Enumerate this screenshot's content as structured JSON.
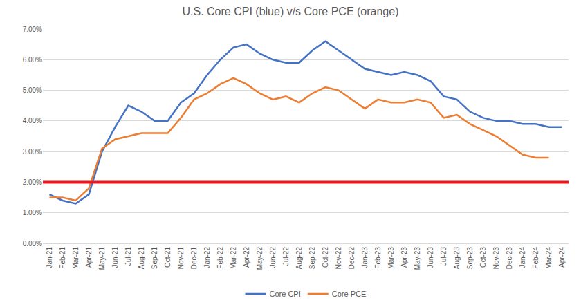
{
  "chart_data": {
    "type": "line",
    "title": "U.S. Core CPI (blue) v/s Core PCE (orange)",
    "categories": [
      "Jan-21",
      "Feb-21",
      "Mar-21",
      "Apr-21",
      "May-21",
      "Jun-21",
      "Jul-21",
      "Aug-21",
      "Sep-21",
      "Oct-21",
      "Nov-21",
      "Dec-21",
      "Jan-22",
      "Feb-22",
      "Mar-22",
      "Apr-22",
      "May-22",
      "Jun-22",
      "Jul-22",
      "Aug-22",
      "Sep-22",
      "Oct-22",
      "Nov-22",
      "Dec-22",
      "Jan-23",
      "Feb-23",
      "Mar-23",
      "Apr-23",
      "May-23",
      "Jun-23",
      "Jul-23",
      "Aug-23",
      "Sep-23",
      "Oct-23",
      "Nov-23",
      "Dec-23",
      "Jan-24",
      "Feb-24",
      "Mar-24",
      "Apr-24"
    ],
    "series": [
      {
        "name": "Core CPI",
        "color": "#4472c4",
        "values": [
          1.6,
          1.4,
          1.3,
          1.6,
          3.0,
          3.8,
          4.5,
          4.3,
          4.0,
          4.0,
          4.6,
          4.9,
          5.5,
          6.0,
          6.4,
          6.5,
          6.2,
          6.0,
          5.9,
          5.9,
          6.3,
          6.6,
          6.3,
          6.0,
          5.7,
          5.6,
          5.5,
          5.6,
          5.5,
          5.3,
          4.8,
          4.7,
          4.3,
          4.1,
          4.0,
          4.0,
          3.9,
          3.9,
          3.8,
          3.8
        ]
      },
      {
        "name": "Core PCE",
        "color": "#ed7d31",
        "values": [
          1.5,
          1.5,
          1.4,
          1.8,
          3.1,
          3.4,
          3.5,
          3.6,
          3.6,
          3.6,
          4.1,
          4.7,
          4.9,
          5.2,
          5.4,
          5.2,
          4.9,
          4.7,
          4.8,
          4.6,
          4.9,
          5.1,
          5.0,
          4.7,
          4.4,
          4.7,
          4.6,
          4.6,
          4.7,
          4.6,
          4.1,
          4.2,
          3.9,
          3.7,
          3.5,
          3.2,
          2.9,
          2.8,
          2.8,
          null
        ]
      }
    ],
    "reference_line": {
      "value": 2,
      "color": "#e8191f"
    },
    "ylim": [
      0,
      7
    ],
    "yticks": [
      {
        "value": 0,
        "label": "0.00%"
      },
      {
        "value": 1,
        "label": "1.00%"
      },
      {
        "value": 2,
        "label": "2.00%"
      },
      {
        "value": 3,
        "label": "3.00%"
      },
      {
        "value": 4,
        "label": "4.00%"
      },
      {
        "value": 5,
        "label": "5.00%"
      },
      {
        "value": 6,
        "label": "6.00%"
      },
      {
        "value": 7,
        "label": "7.00%"
      }
    ],
    "grid": true,
    "legend": "bottom"
  }
}
